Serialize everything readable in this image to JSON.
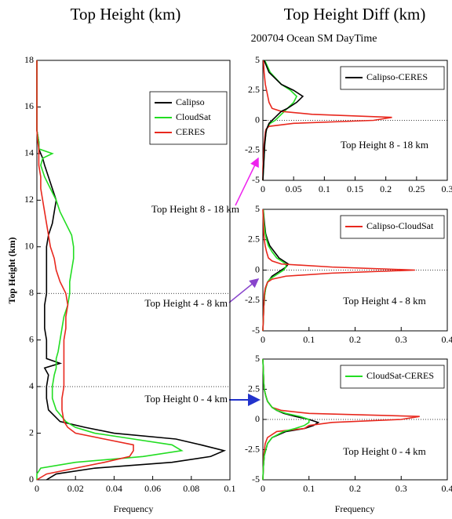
{
  "column_title": "Top Height Diff (km)",
  "subtitle": "200704 Ocean SM DayTime",
  "annotations": [
    {
      "text": "Top Height 8 - 18 km",
      "color": "#ee22ee"
    },
    {
      "text": "Top Height 4 - 8 km",
      "color": "#8844cc"
    },
    {
      "text": "Top Height 0 - 4 km",
      "color": "#2233cc"
    }
  ],
  "chart_data": [
    {
      "type": "line",
      "title": "Top Height (km)",
      "xlabel": "Frequency",
      "ylabel": "Top Height (km)",
      "xlim": [
        0,
        0.1
      ],
      "xticks": [
        0,
        0.02,
        0.04,
        0.06,
        0.08,
        0.1
      ],
      "ylim": [
        0,
        18
      ],
      "yticks": [
        0,
        2,
        4,
        6,
        8,
        10,
        12,
        14,
        16,
        18
      ],
      "reference_lines": [
        8,
        4
      ],
      "legend": "upper right",
      "y": [
        0,
        0.25,
        0.5,
        0.75,
        1,
        1.25,
        1.5,
        1.75,
        2,
        2.25,
        2.5,
        3,
        3.5,
        4,
        4.5,
        4.8,
        5,
        5.2,
        5.5,
        6,
        6.5,
        7,
        7.5,
        8,
        8.5,
        9,
        9.5,
        10,
        10.5,
        11,
        11.5,
        12,
        12.5,
        13,
        13.5,
        13.8,
        14,
        14.2,
        14.5,
        15,
        16,
        17,
        18
      ],
      "series": [
        {
          "name": "Calipso",
          "color": "#000000",
          "values": [
            0.005,
            0.01,
            0.03,
            0.07,
            0.09,
            0.097,
            0.085,
            0.072,
            0.04,
            0.025,
            0.012,
            0.006,
            0.005,
            0.005,
            0.006,
            0.004,
            0.012,
            0.005,
            0.005,
            0.005,
            0.004,
            0.004,
            0.004,
            0.005,
            0.005,
            0.005,
            0.005,
            0.005,
            0.006,
            0.008,
            0.009,
            0.01,
            0.008,
            0.006,
            0.004,
            0.003,
            0.002,
            0.001,
            0.001,
            0,
            0,
            0,
            0
          ]
        },
        {
          "name": "CloudSat",
          "color": "#22dd22",
          "values": [
            0,
            0,
            0.002,
            0.02,
            0.055,
            0.075,
            0.07,
            0.05,
            0.03,
            0.02,
            0.015,
            0.01,
            0.008,
            0.008,
            0.009,
            0.01,
            0.01,
            0.01,
            0.011,
            0.012,
            0.013,
            0.014,
            0.016,
            0.017,
            0.017,
            0.018,
            0.019,
            0.019,
            0.018,
            0.015,
            0.012,
            0.01,
            0.007,
            0.004,
            0.002,
            0.003,
            0.008,
            0.001,
            0.001,
            0,
            0,
            0,
            0
          ]
        },
        {
          "name": "CERES",
          "color": "#e8281e",
          "values": [
            0,
            0.005,
            0.02,
            0.035,
            0.048,
            0.05,
            0.05,
            0.035,
            0.02,
            0.016,
            0.014,
            0.013,
            0.013,
            0.014,
            0.014,
            0.014,
            0.014,
            0.014,
            0.014,
            0.014,
            0.015,
            0.015,
            0.016,
            0.015,
            0.012,
            0.01,
            0.009,
            0.007,
            0.006,
            0.005,
            0.004,
            0.003,
            0.002,
            0.002,
            0.001,
            0.001,
            0.001,
            0.001,
            0.0005,
            0,
            0,
            0,
            0
          ]
        }
      ]
    },
    {
      "type": "line",
      "annotation": {
        "text": "Top Height 8 - 18 km",
        "color": "#ee22ee"
      },
      "xlim": [
        0,
        0.3
      ],
      "xticks": [
        0,
        0.05,
        0.1,
        0.15,
        0.2,
        0.25,
        0.3
      ],
      "ylim": [
        -5,
        5
      ],
      "yticks": [
        -5,
        -2.5,
        0,
        2.5,
        5
      ],
      "reference_lines": [
        0
      ],
      "legend": "upper right",
      "y": [
        -5,
        -4,
        -3,
        -2,
        -1.5,
        -1,
        -0.75,
        -0.5,
        -0.25,
        0,
        0.25,
        0.5,
        0.75,
        1,
        1.5,
        2,
        2.5,
        3,
        4,
        5
      ],
      "series": [
        {
          "color": "#22dd22",
          "values": [
            0,
            0.001,
            0.002,
            0.003,
            0.004,
            0.005,
            0.006,
            0.008,
            0.012,
            0.02,
            0.025,
            0.03,
            0.035,
            0.04,
            0.05,
            0.055,
            0.045,
            0.03,
            0.012,
            0.003
          ]
        },
        {
          "color": "#e8281e",
          "values": [
            0,
            0,
            0.001,
            0.002,
            0.003,
            0.004,
            0.005,
            0.01,
            0.05,
            0.18,
            0.21,
            0.08,
            0.03,
            0.015,
            0.01,
            0.008,
            0.006,
            0.004,
            0.002,
            0.001
          ]
        },
        {
          "name": "Calipso-CERES",
          "color": "#000000",
          "values": [
            0,
            0.001,
            0.002,
            0.003,
            0.004,
            0.005,
            0.006,
            0.008,
            0.01,
            0.015,
            0.02,
            0.025,
            0.03,
            0.04,
            0.055,
            0.065,
            0.05,
            0.03,
            0.01,
            0.002
          ]
        }
      ]
    },
    {
      "type": "line",
      "annotation": {
        "text": "Top Height 4 - 8 km",
        "color": "#8844cc"
      },
      "xlim": [
        0,
        0.4
      ],
      "xticks": [
        0,
        0.1,
        0.2,
        0.3,
        0.4
      ],
      "ylim": [
        -5,
        5
      ],
      "yticks": [
        -5,
        -2.5,
        0,
        2.5,
        5
      ],
      "reference_lines": [
        0
      ],
      "legend": "upper right",
      "y": [
        -5,
        -4,
        -3,
        -2,
        -1.5,
        -1,
        -0.75,
        -0.5,
        -0.25,
        0,
        0.25,
        0.5,
        0.75,
        1,
        1.5,
        2,
        2.5,
        3,
        4,
        5
      ],
      "series": [
        {
          "color": "#000000",
          "values": [
            0,
            0.001,
            0.002,
            0.004,
            0.006,
            0.01,
            0.015,
            0.02,
            0.03,
            0.04,
            0.05,
            0.055,
            0.045,
            0.035,
            0.025,
            0.015,
            0.01,
            0.006,
            0.003,
            0.001
          ]
        },
        {
          "color": "#22dd22",
          "values": [
            0,
            0.001,
            0.002,
            0.004,
            0.006,
            0.01,
            0.015,
            0.025,
            0.035,
            0.045,
            0.05,
            0.05,
            0.04,
            0.03,
            0.02,
            0.012,
            0.008,
            0.005,
            0.002,
            0.001
          ]
        },
        {
          "name": "Calipso-CloudSat",
          "color": "#e8281e",
          "values": [
            0,
            0.001,
            0.002,
            0.003,
            0.005,
            0.01,
            0.02,
            0.05,
            0.15,
            0.33,
            0.15,
            0.04,
            0.02,
            0.012,
            0.008,
            0.005,
            0.003,
            0.002,
            0.001,
            0
          ]
        }
      ]
    },
    {
      "type": "line",
      "xlabel": "Frequency",
      "annotation": {
        "text": "Top Height 0 - 4 km",
        "color": "#2233cc"
      },
      "xlim": [
        0,
        0.4
      ],
      "xticks": [
        0,
        0.1,
        0.2,
        0.3,
        0.4
      ],
      "ylim": [
        -5,
        5
      ],
      "yticks": [
        -5,
        -2.5,
        0,
        2.5,
        5
      ],
      "reference_lines": [
        0
      ],
      "legend": "upper right",
      "y": [
        -5,
        -4,
        -3,
        -2,
        -1.5,
        -1,
        -0.75,
        -0.5,
        -0.25,
        0,
        0.25,
        0.5,
        0.75,
        1,
        1.5,
        2,
        2.5,
        3,
        4,
        5
      ],
      "series": [
        {
          "color": "#000000",
          "values": [
            0,
            0.001,
            0.003,
            0.01,
            0.02,
            0.05,
            0.09,
            0.11,
            0.12,
            0.1,
            0.07,
            0.045,
            0.03,
            0.02,
            0.01,
            0.006,
            0.003,
            0.002,
            0.001,
            0
          ]
        },
        {
          "color": "#e8281e",
          "values": [
            0,
            0.001,
            0.002,
            0.005,
            0.01,
            0.03,
            0.09,
            0.1,
            0.15,
            0.3,
            0.34,
            0.1,
            0.04,
            0.02,
            0.01,
            0.006,
            0.003,
            0.002,
            0.001,
            0
          ]
        },
        {
          "name": "CloudSat-CERES",
          "color": "#22dd22",
          "values": [
            0,
            0.001,
            0.003,
            0.01,
            0.02,
            0.045,
            0.07,
            0.09,
            0.1,
            0.1,
            0.08,
            0.05,
            0.03,
            0.02,
            0.01,
            0.006,
            0.003,
            0.002,
            0.001,
            0
          ]
        }
      ]
    }
  ]
}
